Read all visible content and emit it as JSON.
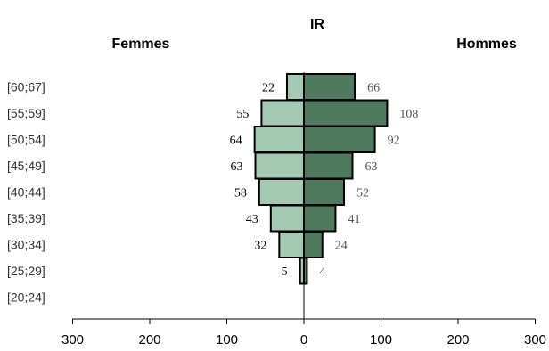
{
  "chart_data": {
    "type": "bar",
    "orientation": "horizontal",
    "title": "IR",
    "categories": [
      "[60;67]",
      "[55;59]",
      "[50;54]",
      "[45;49]",
      "[40;44]",
      "[35;39]",
      "[30;34]",
      "[25;29]",
      "[20;24]"
    ],
    "series": [
      {
        "name": "Femmes",
        "side": "left",
        "color": "#a3c9b2",
        "values": [
          22,
          55,
          64,
          63,
          58,
          43,
          32,
          5,
          0
        ],
        "labels": [
          "22",
          "55",
          "64",
          "63",
          "58",
          "43",
          "32",
          "5",
          ""
        ]
      },
      {
        "name": "Hommes",
        "side": "right",
        "color": "#4f7a5e",
        "values": [
          66,
          108,
          92,
          63,
          52,
          41,
          24,
          4,
          0
        ],
        "labels": [
          "66",
          "108",
          "92",
          "63",
          "52",
          "41",
          "24",
          "4",
          ""
        ]
      }
    ],
    "xlim": [
      -300,
      300
    ],
    "ticks": [
      {
        "value": -300,
        "label": "300"
      },
      {
        "value": -200,
        "label": "200"
      },
      {
        "value": -100,
        "label": "100"
      },
      {
        "value": 0,
        "label": "0"
      },
      {
        "value": 100,
        "label": "100"
      },
      {
        "value": 200,
        "label": "200"
      },
      {
        "value": 300,
        "label": "300"
      }
    ],
    "grid": false
  }
}
